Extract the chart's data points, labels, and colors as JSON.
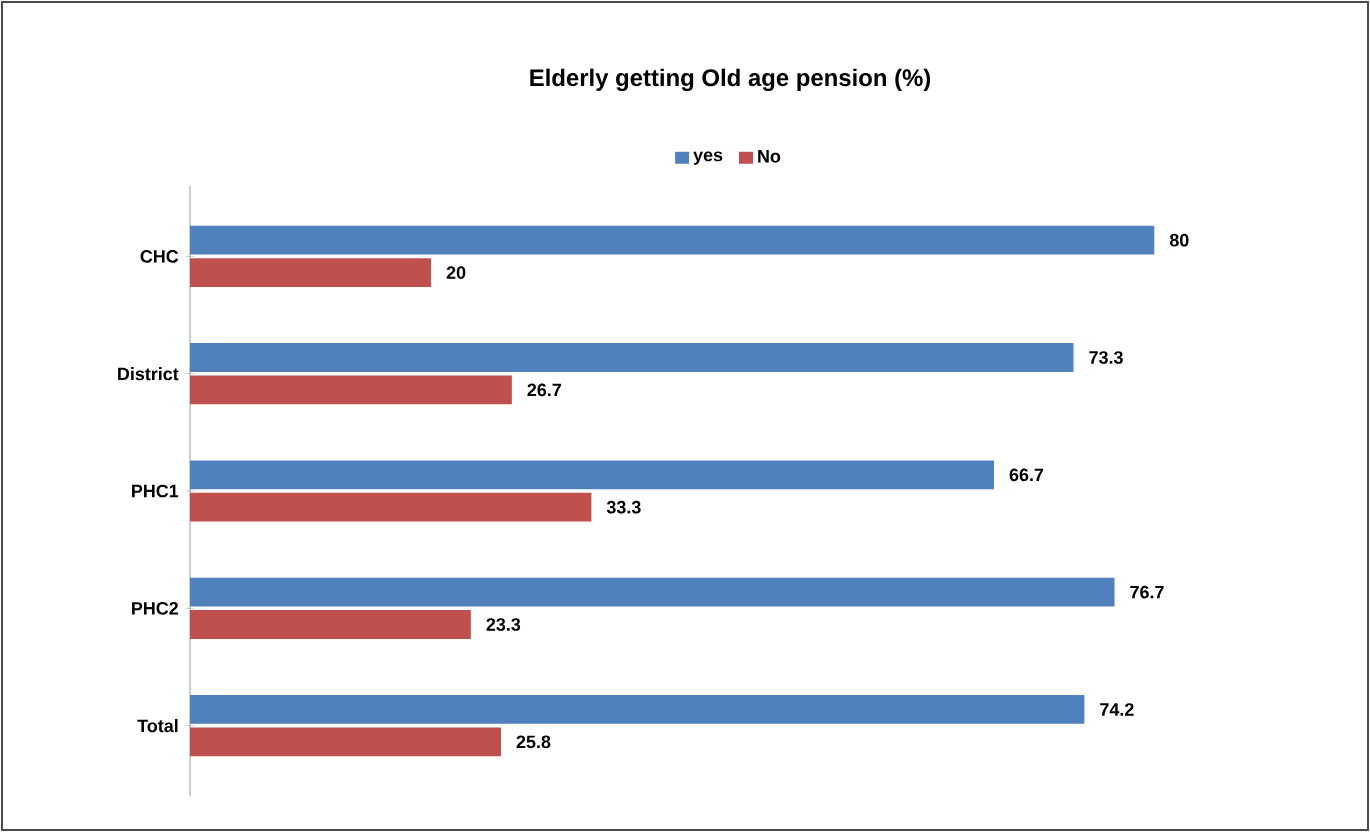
{
  "chart_data": {
    "type": "bar",
    "orientation": "horizontal",
    "title": "Elderly  getting  Old age  pension (%)",
    "categories": [
      "CHC",
      "District",
      "PHC1",
      "PHC2",
      "Total"
    ],
    "series": [
      {
        "name": "yes",
        "color": "#4f81bd",
        "values": [
          80,
          73.3,
          66.7,
          76.7,
          74.2
        ]
      },
      {
        "name": "No",
        "color": "#c0504d",
        "values": [
          20,
          26.7,
          33.3,
          23.3,
          25.8
        ]
      }
    ],
    "data_labels": true,
    "legend": "top"
  }
}
